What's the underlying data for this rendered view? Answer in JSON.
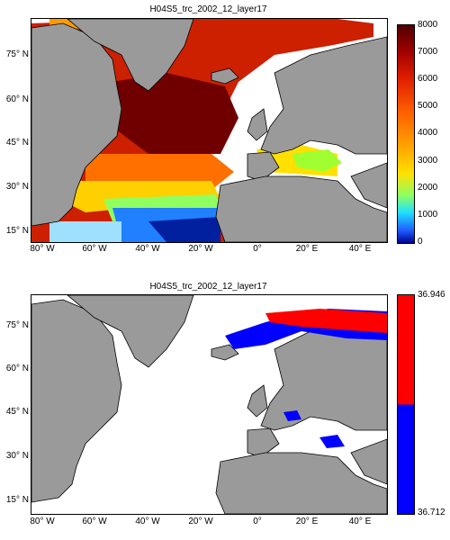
{
  "panels": [
    {
      "title": "H04S5_trc_2002_12_layer17",
      "colorbar": {
        "type": "continuous",
        "ticks": [
          "8000",
          "7000",
          "6000",
          "5000",
          "4000",
          "3000",
          "2000",
          "1000",
          "0"
        ],
        "range": [
          0,
          8000
        ]
      }
    },
    {
      "title": "H04S5_trc_2002_12_layer17",
      "colorbar": {
        "type": "binary",
        "ticks": [
          "36.946",
          "36.712"
        ],
        "colors": {
          "high": "#ff0000",
          "low": "#0000ff"
        }
      }
    }
  ],
  "axes": {
    "lat_ticks": [
      "75° N",
      "60° N",
      "45° N",
      "30° N",
      "15° N"
    ],
    "lon_ticks": [
      "80° W",
      "60° W",
      "40° W",
      "20° W",
      "0°",
      "20° E",
      "40° E"
    ]
  },
  "colors": {
    "land": "#9a9a9a",
    "ocean_nodata": "#ffffff",
    "coast": "#000000"
  }
}
